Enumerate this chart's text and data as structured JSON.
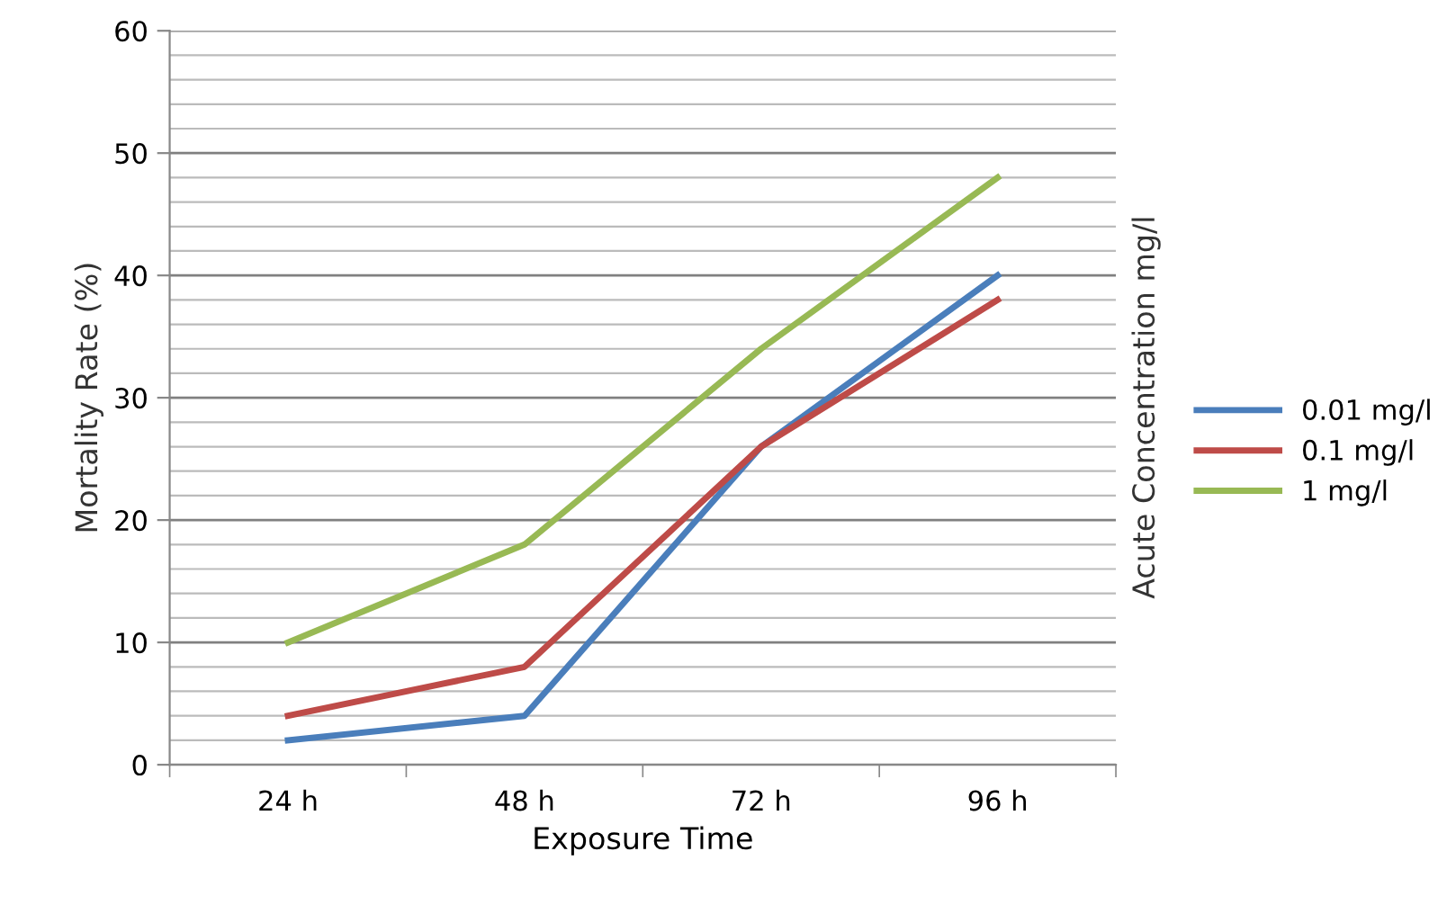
{
  "chart_data": {
    "type": "line",
    "xlabel": "Exposure Time",
    "ylabel": "Mortality Rate (%)",
    "legend_title": "Acute Concentration mg/l",
    "categories": [
      "24 h",
      "48 h",
      "72 h",
      "96 h"
    ],
    "series": [
      {
        "name": "0.01 mg/l",
        "color": "#4a7ebb",
        "values": [
          2,
          4,
          26,
          40
        ]
      },
      {
        "name": "0.1 mg/l",
        "color": "#be4b48",
        "values": [
          4,
          8,
          26,
          38
        ]
      },
      {
        "name": "1 mg/l",
        "color": "#98b954",
        "values": [
          10,
          18,
          34,
          48
        ]
      }
    ],
    "ylim": [
      0,
      60
    ],
    "yticks": [
      0,
      {
        "value": 2,
        "label": null
      },
      {
        "value": 4,
        "label": null
      },
      {
        "value": 6,
        "label": null
      },
      {
        "value": 8,
        "label": null
      },
      10,
      {
        "value": 12,
        "label": null
      },
      {
        "value": 14,
        "label": null
      },
      {
        "value": 16,
        "label": null
      },
      {
        "value": 18,
        "label": null
      },
      20,
      {
        "value": 22,
        "label": null
      },
      {
        "value": 24,
        "label": null
      },
      {
        "value": 26,
        "label": null
      },
      {
        "value": 28,
        "label": null
      },
      30,
      {
        "value": 32,
        "label": null
      },
      {
        "value": 34,
        "label": null
      },
      {
        "value": 36,
        "label": null
      },
      {
        "value": 38,
        "label": null
      },
      40,
      {
        "value": 42,
        "label": null
      },
      {
        "value": 44,
        "label": null
      },
      {
        "value": 46,
        "label": null
      },
      {
        "value": 48,
        "label": null
      },
      50,
      {
        "value": 52,
        "label": null
      },
      {
        "value": 54,
        "label": null
      },
      {
        "value": 56,
        "label": null
      },
      {
        "value": 58,
        "label": null
      },
      60
    ],
    "grid": "y",
    "legend": "right",
    "marker": "none",
    "line_style": "solid"
  }
}
